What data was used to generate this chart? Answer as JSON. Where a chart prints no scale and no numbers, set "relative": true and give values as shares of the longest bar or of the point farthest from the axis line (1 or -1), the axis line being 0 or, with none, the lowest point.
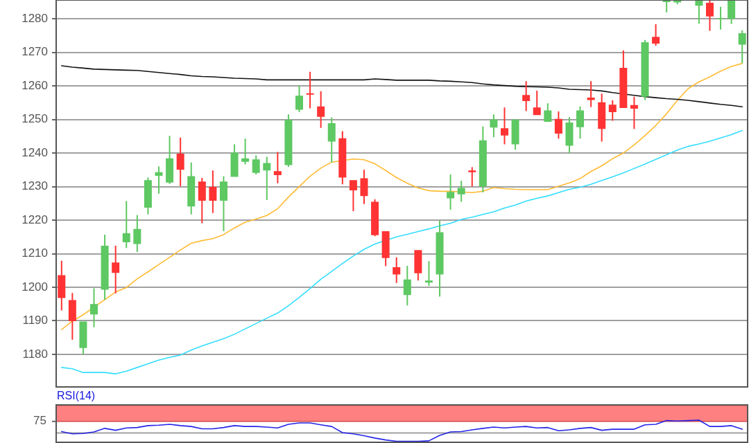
{
  "chart_data": [
    {
      "type": "candlestick",
      "categories": [
        null,
        null,
        null,
        null,
        null,
        null,
        null,
        null,
        null,
        null,
        null,
        null,
        null,
        null,
        null,
        null,
        null,
        null,
        null,
        null,
        null,
        null,
        null,
        null,
        null,
        null,
        null,
        null,
        null,
        null,
        null,
        null,
        null,
        null,
        null,
        null,
        null,
        null,
        null,
        null,
        null,
        null,
        null,
        null,
        null,
        null,
        null,
        null,
        null,
        null,
        null,
        null,
        null,
        null,
        null,
        null,
        null,
        null,
        null,
        null,
        null,
        null,
        null,
        null
      ],
      "ohlc": [
        [
          1203.6,
          1207.9,
          1193.1,
          1196.8
        ],
        [
          1196.2,
          1198.3,
          1184.4,
          1189.9
        ],
        [
          1181.9,
          1189.8,
          1180.1,
          1189.8
        ],
        [
          1191.9,
          1199.7,
          1188.1,
          1195.0
        ],
        [
          1199.3,
          1215.7,
          1196.3,
          1212.4
        ],
        [
          1207.4,
          1212.4,
          1198.2,
          1204.3
        ],
        [
          1213.4,
          1225.7,
          1211.7,
          1216.1
        ],
        [
          1212.9,
          1221.5,
          1210.5,
          1217.4
        ],
        [
          1223.7,
          1232.7,
          1221.7,
          1231.9
        ],
        [
          1233.2,
          1236.0,
          1227.9,
          1234.3
        ],
        [
          1231.2,
          1245.1,
          1230.8,
          1238.4
        ],
        [
          1239.8,
          1244.6,
          1230.1,
          1235.0
        ],
        [
          1224.1,
          1237.2,
          1221.7,
          1233.1
        ],
        [
          1231.5,
          1232.6,
          1219.1,
          1225.8
        ],
        [
          1229.9,
          1234.8,
          1222.1,
          1225.8
        ],
        [
          1225.8,
          1233.1,
          1216.7,
          1231.5
        ],
        [
          1232.9,
          1242.6,
          1232.9,
          1240.1
        ],
        [
          1237.4,
          1244.3,
          1236.6,
          1238.4
        ],
        [
          1234.1,
          1239.3,
          1233.6,
          1238.1
        ],
        [
          1234.8,
          1238.9,
          1226.0,
          1237.0
        ],
        [
          1234.6,
          1240.3,
          1231.0,
          1233.4
        ],
        [
          1236.4,
          1251.5,
          1235.9,
          1249.9
        ],
        [
          1252.9,
          1260.0,
          1252.2,
          1257.1
        ],
        [
          1257.8,
          1264.2,
          1253.3,
          1257.4
        ],
        [
          1253.9,
          1258.4,
          1247.5,
          1250.8
        ],
        [
          1243.4,
          1250.6,
          1237.2,
          1248.9
        ],
        [
          1244.4,
          1246.5,
          1230.7,
          1232.7
        ],
        [
          1231.9,
          1231.9,
          1222.7,
          1228.9
        ],
        [
          1232.5,
          1235.0,
          1224.8,
          1227.2
        ],
        [
          1225.5,
          1226.2,
          1215.2,
          1215.5
        ],
        [
          1216.7,
          1216.7,
          1206.3,
          1208.7
        ],
        [
          1206.0,
          1208.9,
          1201.3,
          1203.8
        ],
        [
          1197.7,
          1206.4,
          1194.6,
          1202.3
        ],
        [
          1211.1,
          1211.1,
          1202.0,
          1204.2
        ],
        [
          1201.4,
          1207.8,
          1200.4,
          1202.0
        ],
        [
          1203.8,
          1219.8,
          1197.2,
          1216.4
        ],
        [
          1226.5,
          1233.6,
          1223.1,
          1228.4
        ],
        [
          1227.7,
          1231.7,
          1225.5,
          1229.6
        ],
        [
          1234.8,
          1235.8,
          1230.0,
          1234.3
        ],
        [
          1230.0,
          1247.9,
          1228.3,
          1243.8
        ],
        [
          1247.6,
          1251.5,
          1244.7,
          1250.0
        ],
        [
          1247.4,
          1253.6,
          1242.6,
          1245.2
        ],
        [
          1242.6,
          1250.0,
          1241.0,
          1250.0
        ],
        [
          1257.3,
          1261.4,
          1252.5,
          1255.5
        ],
        [
          1253.6,
          1258.6,
          1251.3,
          1251.3
        ],
        [
          1249.3,
          1254.8,
          1249.3,
          1252.7
        ],
        [
          1250.2,
          1252.4,
          1244.3,
          1245.8
        ],
        [
          1242.2,
          1250.7,
          1240.0,
          1249.1
        ],
        [
          1247.7,
          1253.9,
          1244.3,
          1252.7
        ],
        [
          1256.5,
          1261.4,
          1253.7,
          1255.8
        ],
        [
          1255.1,
          1257.7,
          1243.4,
          1247.2
        ],
        [
          1254.4,
          1255.7,
          1249.6,
          1252.2
        ],
        [
          1265.4,
          1270.6,
          1253.4,
          1253.4
        ],
        [
          1254.3,
          1256.8,
          1247.2,
          1253.2
        ],
        [
          1256.8,
          1273.7,
          1255.8,
          1273.0
        ],
        [
          1274.6,
          1278.4,
          1272.0,
          1272.6
        ],
        [
          1285.0,
          1285.5,
          1281.9,
          1285.5
        ],
        [
          1284.9,
          1285.5,
          1284.3,
          1285.5
        ],
        null,
        [
          1283.9,
          1285.5,
          1278.5,
          1285.5
        ],
        [
          1284.8,
          1285.5,
          1276.4,
          1280.7
        ],
        [
          1279.9,
          1283.6,
          1276.8,
          1280.2
        ],
        [
          1280.0,
          1285.5,
          1278.5,
          1285.5
        ],
        [
          1272.3,
          1276.6,
          1266.8,
          1275.7
        ]
      ],
      "colors": [
        "#ff3333",
        "#ff3333",
        "#5ec862",
        "#5ec862",
        "#5ec862",
        "#ff3333",
        "#5ec862",
        "#5ec862",
        "#5ec862",
        "#5ec862",
        "#5ec862",
        "#ff3333",
        "#5ec862",
        "#ff3333",
        "#ff3333",
        "#5ec862",
        "#5ec862",
        "#5ec862",
        "#5ec862",
        "#5ec862",
        "#ff3333",
        "#5ec862",
        "#5ec862",
        "#ff3333",
        "#ff3333",
        "#5ec862",
        "#ff3333",
        "#ff3333",
        "#ff3333",
        "#ff3333",
        "#ff3333",
        "#ff3333",
        "#5ec862",
        "#ff3333",
        "#5ec862",
        "#5ec862",
        "#5ec862",
        "#5ec862",
        "#ff3333",
        "#5ec862",
        "#5ec862",
        "#ff3333",
        "#5ec862",
        "#ff3333",
        "#ff3333",
        "#5ec862",
        "#ff3333",
        "#5ec862",
        "#5ec862",
        "#ff3333",
        "#ff3333",
        "#ff3333",
        "#ff3333",
        "#ff3333",
        "#5ec862",
        "#ff3333",
        "#5ec862",
        "#5ec862",
        null,
        "#5ec862",
        "#ff3333",
        "#5ec862",
        "#5ec862",
        "#5ec862"
      ],
      "series": [
        {
          "type": "line",
          "color": "#111111",
          "values": [
            1266.0,
            1265.6,
            1265.3,
            1265.0,
            1264.9,
            1264.8,
            1264.7,
            1264.6,
            1264.3,
            1264.0,
            1263.7,
            1263.4,
            1263.0,
            1262.8,
            1262.7,
            1262.5,
            1262.3,
            1262.2,
            1262.1,
            1261.8,
            1261.8,
            1261.8,
            1261.8,
            1261.8,
            1261.8,
            1261.8,
            1261.8,
            1261.8,
            1261.8,
            1262.1,
            1261.9,
            1261.7,
            1261.7,
            1261.7,
            1261.7,
            1261.5,
            1261.4,
            1261.2,
            1261.0,
            1260.6,
            1260.3,
            1260.1,
            1259.9,
            1259.8,
            1259.7,
            1259.6,
            1259.4,
            1259.0,
            1258.9,
            1258.8,
            1258.5,
            1258.0,
            null,
            1257.2,
            1256.8,
            1256.5,
            1256.2,
            1256.0,
            1255.7,
            1255.3,
            1254.9,
            1254.5,
            1254.2,
            1253.8
          ]
        },
        {
          "type": "line",
          "color": "#ffbb33",
          "values": [
            1187.4,
            1189.9,
            1191.8,
            null,
            1196.3,
            1198.6,
            1199.9,
            1202.5,
            1204.6,
            1206.8,
            1208.9,
            1211.1,
            1213.1,
            1213.9,
            1214.5,
            1215.7,
            1217.7,
            1219.4,
            1220.3,
            1221.4,
            1223.4,
            1226.9,
            1230.0,
            1233.1,
            1235.5,
            1237.3,
            null,
            1238.2,
            1238.0,
            1236.8,
            1234.8,
            1232.7,
            1231.0,
            1229.6,
            1228.8,
            1228.6,
            1228.6,
            null,
            1228.2,
            1228.6,
            1229.7,
            1229.4,
            1229.2,
            1229.1,
            1229.1,
            1229.1,
            1230.1,
            1231.1,
            1232.4,
            1234.5,
            1236.2,
            1238.3,
            1240.0,
            1242.4,
            1245.2,
            1248.2,
            1251.7,
            1255.7,
            1259.2,
            1261.2,
            1262.7,
            1264.4,
            1265.8,
            1266.7
          ]
        },
        {
          "type": "line",
          "color": "#33ddff",
          "values": [
            1176.1,
            1175.7,
            1174.6,
            1174.6,
            1174.6,
            1174.2,
            1175.0,
            1176.1,
            1177.2,
            1178.3,
            1179.1,
            1179.8,
            1181.3,
            1182.5,
            1183.6,
            1184.7,
            1186.0,
            1187.6,
            1189.2,
            1190.8,
            1192.3,
            1194.5,
            1197.0,
            1199.6,
            1202.4,
            1204.7,
            1207.1,
            1209.3,
            1211.3,
            1212.9,
            null,
            1215.0,
            1215.8,
            1216.6,
            1217.4,
            1218.3,
            1219.1,
            1220.2,
            1220.9,
            1221.7,
            1222.5,
            1223.6,
            1224.5,
            1225.7,
            1226.5,
            1227.2,
            1228.2,
            1229.2,
            1229.8,
            1230.7,
            1231.8,
            1232.9,
            1234.1,
            1235.4,
            1236.7,
            1238.1,
            1239.5,
            1240.9,
            1242.0,
            1242.7,
            1243.5,
            1244.5,
            1245.5,
            1246.7
          ]
        }
      ],
      "ylim": [
        1170.3,
        1285.6
      ],
      "yticks": [
        1180,
        1190,
        1200,
        1210,
        1220,
        1230,
        1240,
        1250,
        1260,
        1270,
        1280
      ],
      "grid": "y",
      "tick_labels": "y"
    },
    {
      "type": "line",
      "title": "RSI(14)",
      "relative": true,
      "categories": [
        null,
        null,
        null,
        null,
        null,
        null,
        null,
        null,
        null,
        null,
        null,
        null,
        null,
        null,
        null,
        null,
        null,
        null,
        null,
        null,
        null,
        null,
        null,
        null,
        null,
        null,
        null,
        null,
        null,
        null,
        null,
        null,
        null,
        null,
        null,
        null,
        null,
        null,
        null,
        null,
        null,
        null,
        null,
        null,
        null,
        null,
        null,
        null,
        null,
        null,
        null,
        null,
        null,
        null,
        null,
        null,
        null,
        null,
        null,
        null,
        null,
        null,
        null,
        null
      ],
      "series": [
        {
          "color": "#2424e8",
          "values": [
            0.46,
            0.35,
            0.37,
            0.44,
            0.61,
            0.52,
            0.63,
            0.65,
            0.74,
            0.76,
            0.8,
            0.74,
            0.7,
            0.59,
            0.59,
            0.65,
            0.74,
            0.7,
            0.7,
            0.67,
            0.63,
            0.8,
            0.87,
            0.87,
            0.78,
            0.7,
            0.41,
            0.35,
            0.26,
            0.15,
            0.06,
            0,
            0,
            0,
            0.02,
            0.28,
            0.44,
            0.46,
            0.54,
            0.61,
            0.67,
            0.63,
            0.67,
            0.7,
            0.63,
            0.65,
            0.5,
            0.54,
            0.61,
            0.65,
            0.52,
            0.57,
            0.57,
            0.57,
            0.78,
            0.8,
            0.98,
            0.96,
            0.98,
            1,
            0.7,
            0.7,
            0.74,
            0.57
          ]
        }
      ],
      "bands": [
        {
          "axis": "y",
          "from": 0.94,
          "to": 1.7,
          "color": "#ff8080"
        }
      ],
      "ref_lines": [
        {
          "axis": "y",
          "value": 0.39,
          "color": "#a0a0a0"
        }
      ],
      "annotations": [
        "75"
      ],
      "tick_labels": false
    }
  ]
}
